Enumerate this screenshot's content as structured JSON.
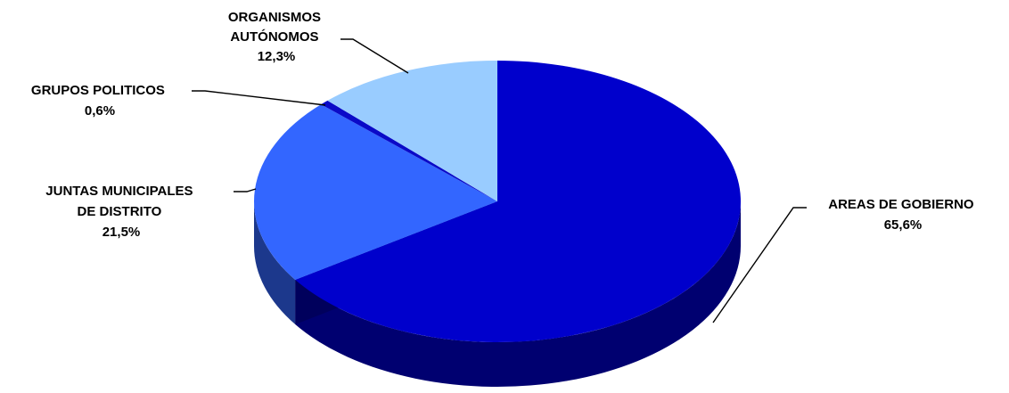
{
  "chart_data": {
    "type": "pie",
    "variant": "3d",
    "start_angle_deg": 0,
    "direction": "clockwise",
    "slices": [
      {
        "label_lines": [
          "AREAS DE GOBIERNO"
        ],
        "value_label": "65,6%",
        "value": 65.6,
        "color": "#0000CC"
      },
      {
        "label_lines": [
          "JUNTAS MUNICIPALES",
          "DE DISTRITO"
        ],
        "value_label": "21,5%",
        "value": 21.5,
        "color": "#3366FF"
      },
      {
        "label_lines": [
          "GRUPOS  POLITICOS"
        ],
        "value_label": "0,6%",
        "value": 0.6,
        "color": "#0A0AC8"
      },
      {
        "label_lines": [
          "ORGANISMOS",
          "AUTÓNOMOS"
        ],
        "value_label": "12,3%",
        "value": 12.3,
        "color": "#99CCFF"
      }
    ]
  }
}
